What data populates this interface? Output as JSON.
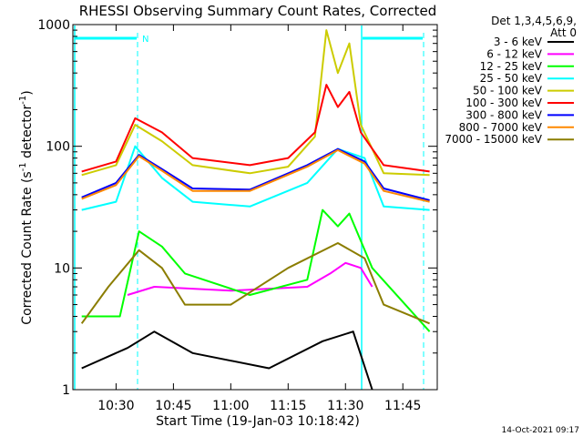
{
  "chart_data": {
    "type": "line",
    "title": "RHESSI Observing Summary Count Rates, Corrected",
    "xlabel": "Start Time (19-Jan-03 10:18:42)",
    "ylabel_main": "Corrected Count Rate (s",
    "ylabel_sup1": "-1",
    "ylabel_mid": " detector",
    "ylabel_sup2": "-1",
    "ylabel_end": ")",
    "yscale": "log",
    "ylim": [
      1,
      1000
    ],
    "xlim": [
      "10:18:42",
      "11:54:00"
    ],
    "x_ticks": [
      "10:30",
      "10:45",
      "11:00",
      "11:15",
      "11:30",
      "11:45"
    ],
    "y_ticks": [
      "1",
      "10",
      "100",
      "1000"
    ],
    "legend_title_1": "Det 1,3,4,5,6,9,",
    "legend_title_2": "Att 0",
    "legend_position": "top-right",
    "footer_timestamp": "14-Oct-2021 09:17",
    "night_marker_label": "N",
    "series": [
      {
        "name": "3 - 6 keV",
        "color": "#000000",
        "x": [
          "10:21",
          "10:33",
          "10:40",
          "10:50",
          "11:10",
          "11:24",
          "11:32",
          "11:37"
        ],
        "values": [
          1.5,
          2.2,
          3,
          2,
          1.5,
          2.5,
          3,
          1
        ]
      },
      {
        "name": "6 - 12 keV",
        "color": "#ff00ff",
        "x": [
          "10:33",
          "10:40",
          "11:00",
          "11:20",
          "11:26",
          "11:30",
          "11:34",
          "11:37"
        ],
        "values": [
          6,
          7,
          6.5,
          7,
          9,
          11,
          10,
          7
        ]
      },
      {
        "name": "12 - 25 keV",
        "color": "#00ff00",
        "x": [
          "10:21",
          "10:31",
          "10:36",
          "10:42",
          "10:48",
          "11:05",
          "11:20",
          "11:24",
          "11:28",
          "11:31",
          "11:37",
          "11:52"
        ],
        "values": [
          4,
          4,
          20,
          15,
          9,
          6,
          8,
          30,
          22,
          28,
          10,
          3
        ]
      },
      {
        "name": "25 - 50 keV",
        "color": "#00ffff",
        "x": [
          "10:21",
          "10:30",
          "10:35",
          "10:42",
          "10:50",
          "11:05",
          "11:20",
          "11:28",
          "11:35",
          "11:40",
          "11:52"
        ],
        "values": [
          30,
          35,
          100,
          55,
          35,
          32,
          50,
          95,
          80,
          32,
          30
        ]
      },
      {
        "name": "50 - 100 keV",
        "color": "#cccc00",
        "x": [
          "10:21",
          "10:30",
          "10:35",
          "10:42",
          "10:50",
          "11:05",
          "11:15",
          "11:22",
          "11:25",
          "11:28",
          "11:31",
          "11:34",
          "11:40",
          "11:52"
        ],
        "values": [
          58,
          70,
          150,
          110,
          70,
          60,
          68,
          120,
          900,
          400,
          700,
          150,
          60,
          58
        ]
      },
      {
        "name": "100 - 300 keV",
        "color": "#ff0000",
        "x": [
          "10:21",
          "10:30",
          "10:35",
          "10:42",
          "10:50",
          "11:05",
          "11:15",
          "11:22",
          "11:25",
          "11:28",
          "11:31",
          "11:34",
          "11:40",
          "11:52"
        ],
        "values": [
          62,
          75,
          170,
          130,
          80,
          70,
          80,
          130,
          320,
          210,
          280,
          130,
          70,
          62
        ]
      },
      {
        "name": "300 - 800 keV",
        "color": "#0000ff",
        "x": [
          "10:21",
          "10:30",
          "10:36",
          "10:42",
          "10:50",
          "11:05",
          "11:20",
          "11:28",
          "11:35",
          "11:40",
          "11:52"
        ],
        "values": [
          38,
          50,
          85,
          65,
          45,
          44,
          70,
          95,
          75,
          45,
          36
        ]
      },
      {
        "name": "800 - 7000 keV",
        "color": "#ff8800",
        "x": [
          "10:21",
          "10:30",
          "10:36",
          "10:42",
          "10:50",
          "11:05",
          "11:20",
          "11:28",
          "11:35",
          "11:40",
          "11:52"
        ],
        "values": [
          37,
          48,
          83,
          63,
          43,
          43,
          68,
          93,
          72,
          43,
          35
        ]
      },
      {
        "name": "7000 - 15000 keV",
        "color": "#8b7d00",
        "x": [
          "10:21",
          "10:28",
          "10:36",
          "10:42",
          "10:48",
          "11:00",
          "11:15",
          "11:28",
          "11:35",
          "11:40",
          "11:52"
        ],
        "values": [
          3.5,
          7,
          14,
          10,
          5,
          5,
          10,
          16,
          12,
          5,
          3.5
        ]
      }
    ]
  }
}
